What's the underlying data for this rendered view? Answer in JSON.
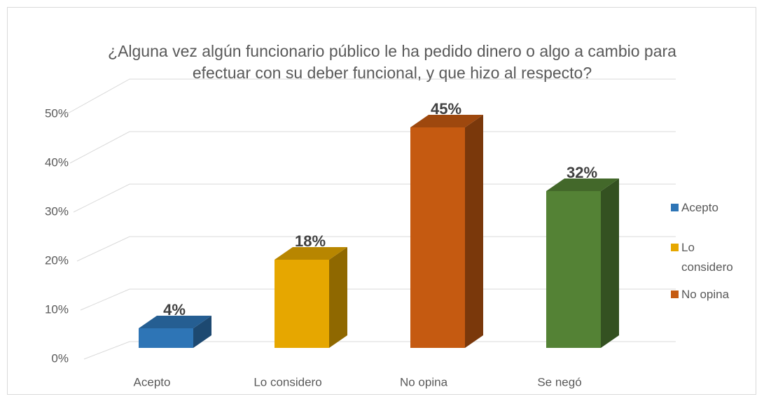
{
  "chart_data": {
    "type": "bar3d",
    "title": "¿Alguna vez algún funcionario público le ha pedido dinero o algo a cambio para efectuar con su deber funcional, y que hizo al respecto?",
    "categories": [
      "Acepto",
      "Lo considero",
      "No opina",
      "Se negó"
    ],
    "values": [
      4,
      18,
      45,
      32
    ],
    "value_labels": [
      "4%",
      "18%",
      "45%",
      "32%"
    ],
    "colors": [
      "#2e75b6",
      "#e6a700",
      "#c55a11",
      "#548235"
    ],
    "ylim": [
      0,
      50
    ],
    "yticks": [
      {
        "value": 0,
        "label": "0%"
      },
      {
        "value": 10,
        "label": "10%"
      },
      {
        "value": 20,
        "label": "20%"
      },
      {
        "value": 30,
        "label": "30%"
      },
      {
        "value": 40,
        "label": "40%"
      },
      {
        "value": 50,
        "label": "50%"
      }
    ],
    "grid": true,
    "legend": {
      "position": "right",
      "entries": [
        "Acepto",
        "Lo considero",
        "No opina"
      ]
    }
  }
}
